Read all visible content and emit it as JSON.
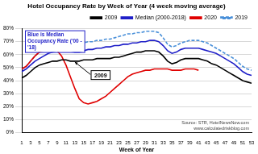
{
  "chart_data": {
    "type": "line",
    "title": "Hotel Occupancy Rate by Week of Year (4 week moving average)",
    "x_label": "Week of Year",
    "categories": [
      "1",
      null,
      "3",
      null,
      "5",
      null,
      "7",
      null,
      "9",
      null,
      "11",
      null,
      "13",
      null,
      "15",
      null,
      "17",
      null,
      "19",
      null,
      "21",
      null,
      "23",
      null,
      "25",
      null,
      "27",
      null,
      "29",
      null,
      "31",
      null,
      "33",
      null,
      "35",
      null,
      "37",
      null,
      "39",
      null,
      "41",
      null,
      "43",
      null,
      "45",
      null,
      "47",
      null,
      "49",
      null,
      "51",
      null,
      "53"
    ],
    "series": [
      {
        "name": "2009",
        "color": "#000000",
        "line_style": "solid",
        "values": [
          42,
          44,
          47,
          50,
          52,
          53,
          54,
          55,
          55,
          56,
          56,
          55,
          55,
          55,
          56,
          56,
          56,
          57,
          57,
          57,
          57,
          58,
          58,
          59,
          60,
          61,
          62,
          62,
          63,
          63,
          63,
          62,
          59,
          55,
          53,
          54,
          56,
          57,
          57,
          57,
          57,
          56,
          55,
          53,
          52,
          50,
          48,
          46,
          44,
          42,
          40,
          39,
          38
        ]
      },
      {
        "name": "Median (2000-2018)",
        "color": "#1f1fc8",
        "line_style": "solid",
        "values": [
          47,
          49,
          52,
          55,
          57,
          59,
          61,
          62,
          63,
          64,
          64,
          63,
          62,
          62,
          63,
          64,
          64,
          65,
          65,
          66,
          66,
          67,
          67,
          68,
          68,
          69,
          69,
          70,
          70,
          71,
          71,
          70,
          67,
          63,
          61,
          62,
          64,
          65,
          65,
          65,
          65,
          64,
          63,
          62,
          61,
          59,
          57,
          55,
          53,
          50,
          47,
          45,
          44
        ]
      },
      {
        "name": "2020",
        "color": "#e00000",
        "line_style": "solid",
        "values": [
          49,
          51,
          55,
          59,
          62,
          63,
          64,
          65,
          63,
          59,
          52,
          43,
          34,
          26,
          23,
          22,
          23,
          24,
          26,
          28,
          31,
          34,
          37,
          40,
          43,
          45,
          46,
          47,
          48,
          48,
          49,
          49,
          49,
          49,
          48,
          48,
          48,
          49,
          49,
          49,
          48,
          null,
          null,
          null,
          null,
          null,
          null,
          null,
          null,
          null,
          null,
          null,
          null
        ]
      },
      {
        "name": "2019",
        "color": "#4a90d9",
        "line_style": "dashed",
        "values": [
          49,
          51,
          55,
          59,
          62,
          64,
          66,
          67,
          68,
          69,
          69,
          68,
          68,
          68,
          69,
          70,
          70,
          71,
          71,
          72,
          72,
          73,
          74,
          75,
          76,
          76,
          77,
          77,
          78,
          78,
          78,
          77,
          73,
          68,
          66,
          67,
          69,
          70,
          71,
          71,
          71,
          70,
          69,
          67,
          65,
          63,
          61,
          59,
          57,
          54,
          51,
          49,
          48
        ]
      }
    ],
    "ylim": [
      0,
      80
    ],
    "yticks": [
      {
        "value": 0,
        "label": "0%"
      },
      {
        "value": 10,
        "label": "10%"
      },
      {
        "value": 20,
        "label": "20%"
      },
      {
        "value": 30,
        "label": "30%"
      },
      {
        "value": 40,
        "label": "40%"
      },
      {
        "value": 50,
        "label": "50%"
      },
      {
        "value": 60,
        "label": "60%"
      },
      {
        "value": 70,
        "label": "70%"
      },
      {
        "value": 80,
        "label": "80%"
      }
    ],
    "grid": true,
    "legend": "top-right",
    "annotations": [
      "Blue is Median Occupancy Rate ('00 - '18)",
      "2009",
      "Source: STR, HotelNewsNow.com",
      "www.calculatedriskblog.com"
    ]
  }
}
